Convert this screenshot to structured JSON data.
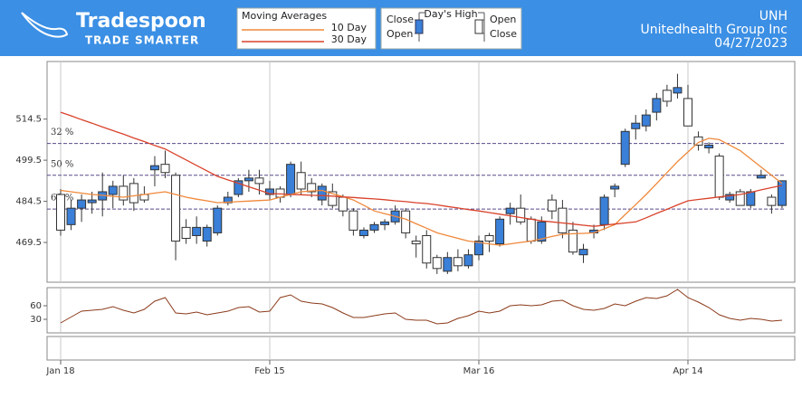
{
  "header": {
    "logo_title": "Tradespoon",
    "logo_subtitle": "TRADE SMARTER",
    "ticker": "UNH",
    "company": "Unitedhealth Group Inc",
    "date": "04/27/2023",
    "candle_legend": {
      "up_top": "Close",
      "up_bottom": "Open",
      "title": "Day's High",
      "down_top": "Open",
      "down_bottom": "Close"
    }
  },
  "chart_data": [
    {
      "type": "candlestick",
      "legend_title": "Moving Averages",
      "categories": [
        "Jan 18",
        null,
        null,
        null,
        null,
        null,
        null,
        null,
        null,
        null,
        null,
        null,
        null,
        null,
        null,
        null,
        null,
        null,
        null,
        null,
        "Feb 15",
        null,
        null,
        null,
        null,
        null,
        null,
        null,
        null,
        null,
        null,
        null,
        null,
        null,
        null,
        null,
        null,
        null,
        null,
        null,
        "Mar 16",
        null,
        null,
        null,
        null,
        null,
        null,
        null,
        null,
        null,
        null,
        null,
        null,
        null,
        null,
        null,
        null,
        null,
        null,
        null,
        "Apr 14",
        null,
        null,
        null,
        null,
        null,
        null,
        null,
        null,
        null
      ],
      "open": [
        487,
        476,
        482,
        484,
        485,
        487,
        490,
        491,
        487,
        496,
        498,
        494,
        475,
        472,
        470,
        473,
        484,
        487,
        492,
        493,
        487,
        489,
        487,
        495,
        491,
        485,
        488,
        486,
        481,
        472,
        474,
        476,
        477,
        481,
        470,
        472,
        464,
        459,
        464,
        461,
        465,
        472,
        469,
        480,
        482,
        478,
        470,
        485,
        482,
        474,
        465,
        473,
        476,
        489,
        498,
        511,
        512,
        517,
        525,
        524,
        522,
        508,
        504,
        501,
        485,
        488,
        483,
        493,
        486,
        483
      ],
      "high": [
        489,
        485,
        487,
        488,
        495,
        492,
        494,
        493,
        490,
        501,
        503,
        495,
        478,
        479,
        476,
        483,
        488,
        493,
        496,
        496,
        492,
        490,
        499,
        499,
        493,
        491,
        491,
        487,
        482,
        475,
        477,
        478,
        483,
        482,
        472,
        474,
        465,
        466,
        467,
        467,
        472,
        473,
        479,
        484,
        487,
        479,
        479,
        487,
        485,
        477,
        469,
        476,
        487,
        491,
        511,
        516,
        518,
        524,
        527,
        531,
        527,
        510,
        506,
        502,
        488,
        489,
        489,
        496,
        487,
        492
      ],
      "low": [
        472,
        474,
        477,
        480,
        479,
        482,
        483,
        481,
        484,
        490,
        493,
        463,
        469,
        469,
        468,
        472,
        483,
        486,
        488,
        487,
        485,
        484,
        486,
        487,
        486,
        483,
        482,
        479,
        472,
        471,
        473,
        474,
        476,
        471,
        464,
        460,
        458,
        458,
        459,
        460,
        463,
        466,
        468,
        476,
        476,
        469,
        469,
        478,
        471,
        465,
        462,
        471,
        474,
        486,
        497,
        507,
        510,
        514,
        519,
        522,
        512,
        503,
        502,
        485,
        484,
        483,
        482,
        493,
        480,
        482
      ],
      "close": [
        474,
        482,
        485,
        485,
        488,
        490,
        485,
        484,
        485,
        497.5,
        495,
        470,
        471,
        475,
        475,
        482,
        486,
        492,
        493,
        491,
        489,
        486,
        498,
        489,
        488,
        490,
        483,
        481,
        474,
        474,
        476,
        477,
        481,
        473,
        469,
        462,
        460,
        464,
        461,
        465,
        470,
        470,
        478,
        482,
        477,
        470,
        477,
        481,
        473,
        466,
        467,
        474,
        486,
        490,
        510,
        513,
        516,
        522,
        521,
        526,
        512,
        505,
        505,
        486,
        487,
        483,
        488,
        494,
        483,
        492
      ],
      "up_color": "#3a7fd8",
      "down_color": "#ffffff",
      "series": [
        {
          "name": "10 Day",
          "color": "#f0883a",
          "values": [
            488.5,
            488,
            487.5,
            487,
            486.7,
            486.3,
            486,
            486.5,
            487,
            487.5,
            488,
            487,
            486,
            485.3,
            484.7,
            484,
            484.2,
            484.4,
            484.6,
            484.8,
            485,
            486,
            487,
            488,
            488.3,
            488.5,
            487.3,
            486.2,
            485,
            483,
            481,
            480,
            479,
            478,
            476.3,
            474.7,
            473,
            472,
            471,
            470,
            469.5,
            469,
            468.5,
            469,
            469.5,
            470,
            470.8,
            471.7,
            472.5,
            472.7,
            472.8,
            473,
            474.5,
            476,
            479.7,
            483.3,
            487,
            491,
            495,
            499,
            502.5,
            506,
            507.5,
            507,
            505,
            503,
            500,
            497,
            494,
            491
          ]
        },
        {
          "name": "30 Day",
          "color": "#d9422b",
          "values": [
            517,
            515.7,
            514.3,
            513,
            511.6,
            510.3,
            509,
            507.6,
            506.3,
            504.9,
            503.6,
            501.6,
            499.6,
            497.6,
            495.6,
            493.6,
            492.3,
            491.1,
            489.8,
            488.6,
            487.3,
            487.2,
            487,
            486.9,
            486.7,
            486.6,
            486.4,
            486.1,
            485.9,
            485.6,
            485.4,
            485.1,
            484.7,
            484.4,
            484,
            483.7,
            483.2,
            482.6,
            482.1,
            481.5,
            481,
            480.4,
            479.8,
            479.2,
            478.6,
            478,
            477.4,
            477,
            476.6,
            476.2,
            475.8,
            475.4,
            475.8,
            476.2,
            476.6,
            477,
            478.5,
            480.1,
            481.6,
            483.2,
            484.7,
            485.2,
            485.6,
            486.1,
            486.5,
            487,
            487.8,
            488.7,
            489.5,
            490.3
          ]
        }
      ],
      "levels": [
        {
          "label": "32 %",
          "value": 505.6
        },
        {
          "label": "50 %",
          "value": 494
        },
        {
          "label": "68 %",
          "value": 481.7
        }
      ],
      "ylim": [
        455,
        535.5
      ],
      "yticks": [
        469.5,
        484.5,
        499.5,
        514.5
      ]
    },
    {
      "type": "line",
      "series": [
        {
          "color": "#8b3a1a",
          "values": [
            22,
            35,
            48,
            50,
            52,
            58,
            50,
            44,
            52,
            70,
            78,
            44,
            42,
            46,
            40,
            44,
            48,
            56,
            58,
            46,
            48,
            78,
            84,
            70,
            66,
            64,
            56,
            44,
            34,
            34,
            38,
            42,
            44,
            30,
            28,
            28,
            20,
            22,
            32,
            38,
            48,
            44,
            48,
            60,
            62,
            60,
            62,
            70,
            72,
            60,
            52,
            50,
            54,
            64,
            60,
            70,
            78,
            76,
            82,
            96,
            78,
            68,
            56,
            40,
            32,
            28,
            32,
            30,
            26,
            28
          ]
        }
      ],
      "ylim": [
        0,
        100
      ],
      "yticks": [
        30,
        60
      ]
    }
  ]
}
